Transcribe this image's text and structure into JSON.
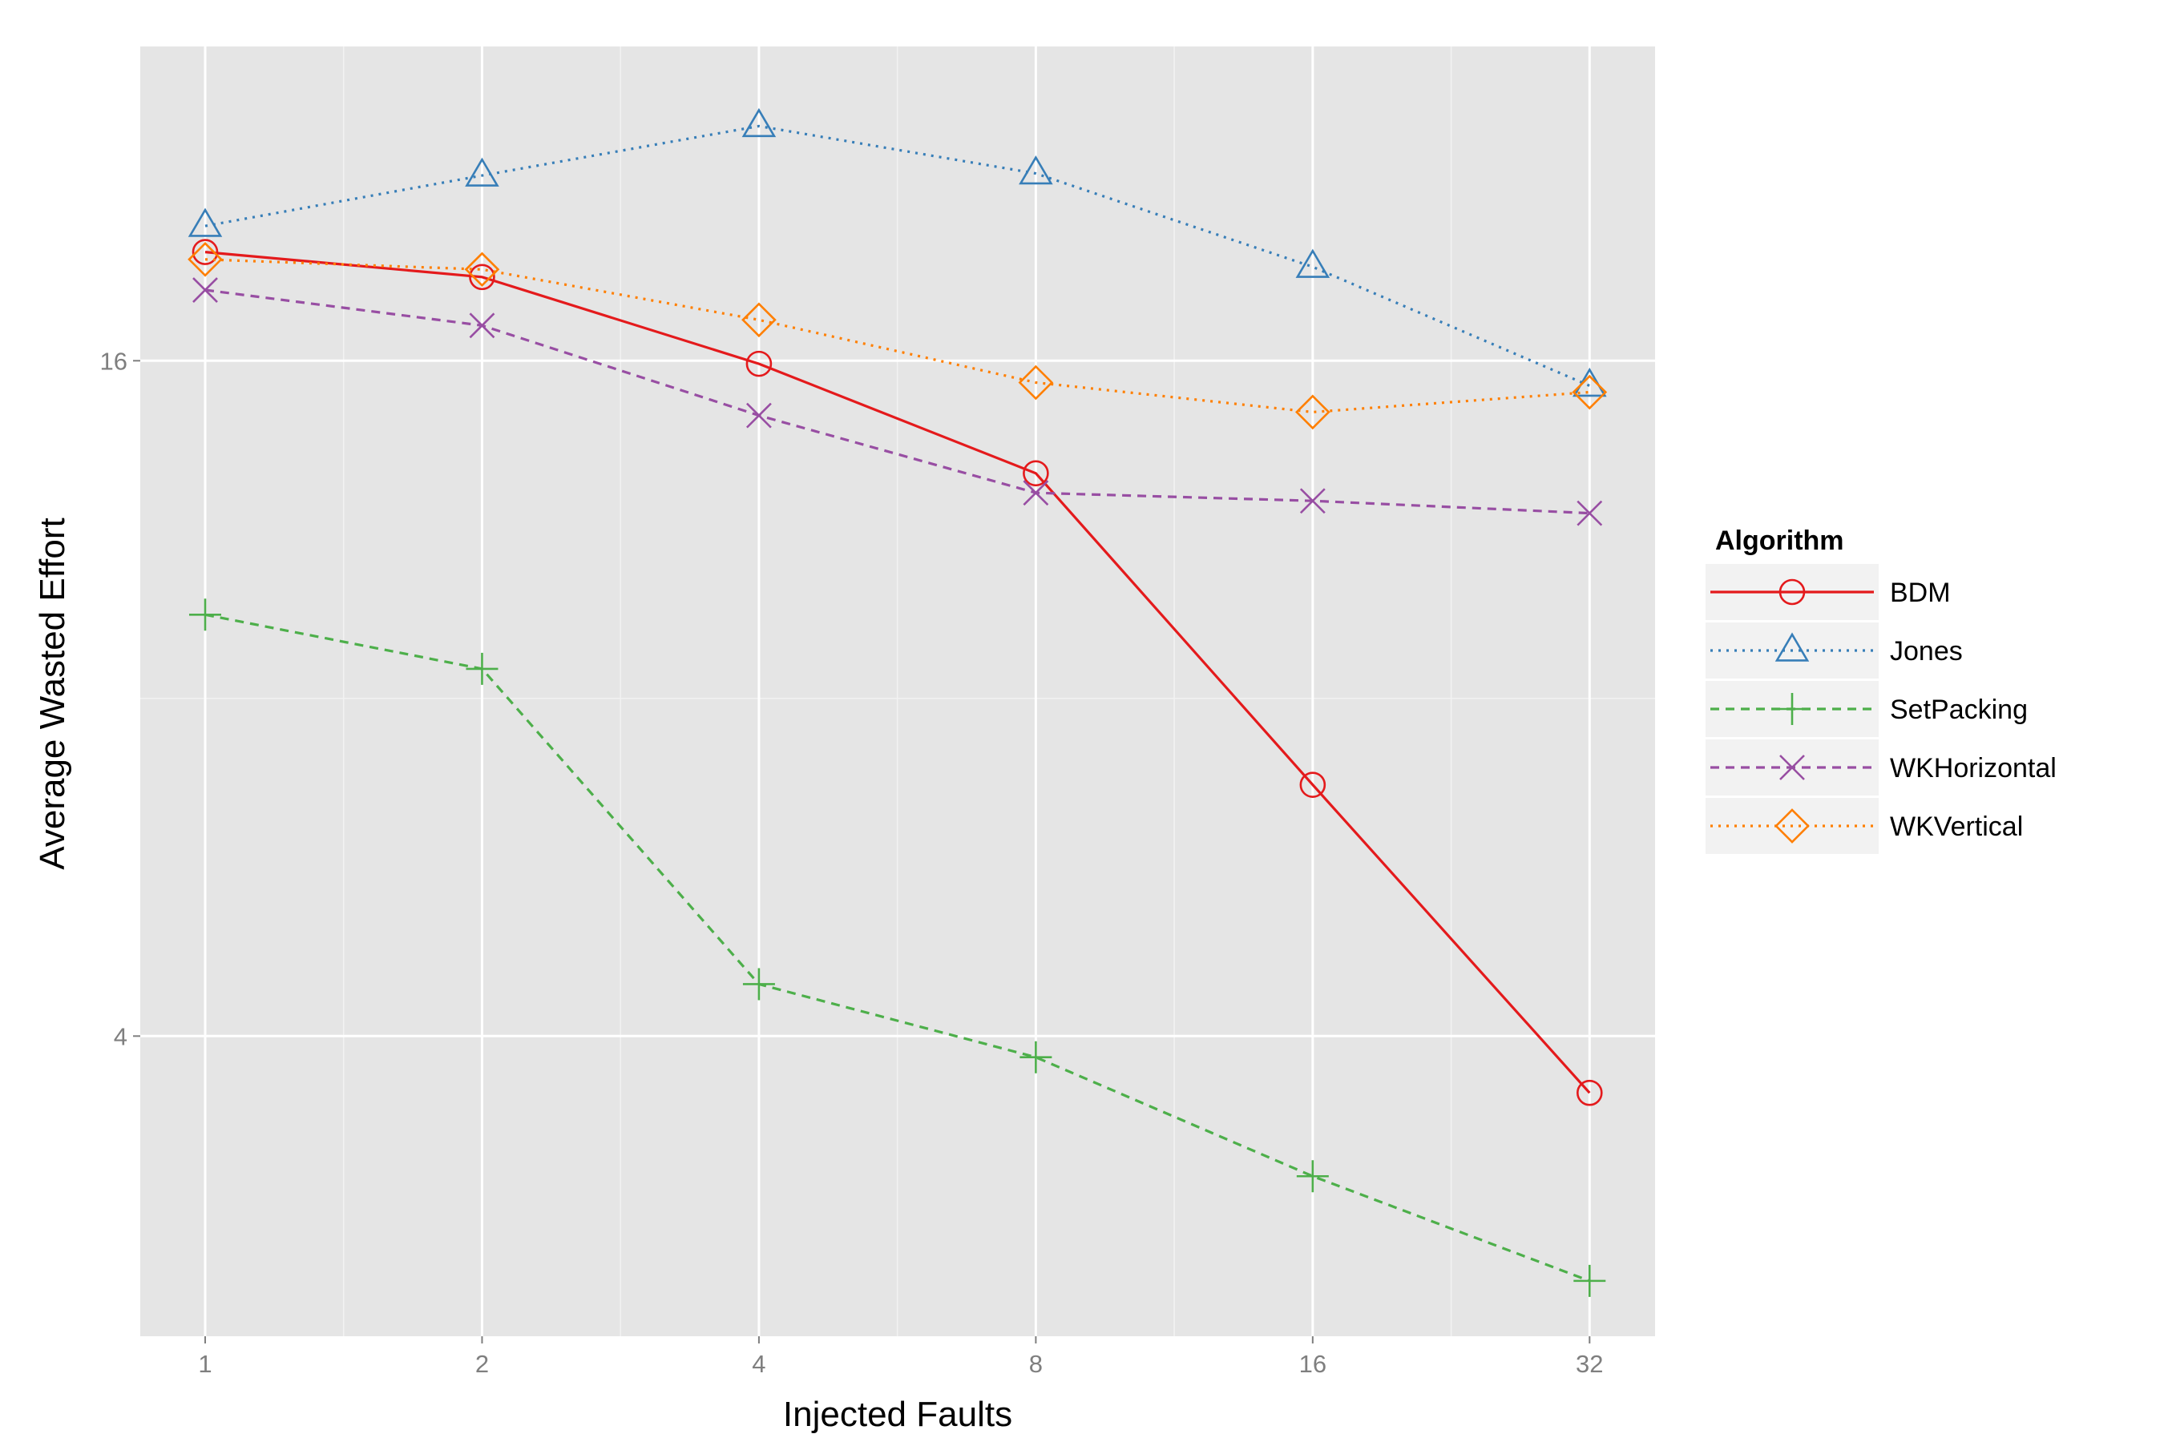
{
  "chart_data": {
    "type": "line",
    "title": "",
    "xlabel": "Injected Faults",
    "ylabel": "Average Wasted Effort",
    "x": [
      1,
      2,
      4,
      8,
      16,
      32
    ],
    "x_ticks": [
      "1",
      "2",
      "4",
      "8",
      "16",
      "32"
    ],
    "y_ticks": [
      {
        "value": 4,
        "label": "4"
      },
      {
        "value": 16,
        "label": "16"
      }
    ],
    "x_scale": "log2",
    "y_scale": "log2",
    "xlim": [
      0.85,
      37.7
    ],
    "ylim": [
      2.16,
      30.5
    ],
    "grid": true,
    "legend_title": "Algorithm",
    "legend_position": "right",
    "series": [
      {
        "name": "BDM",
        "color": "#e41a1c",
        "marker": "circle",
        "dash": "solid",
        "values": [
          20.0,
          19.0,
          15.9,
          12.7,
          6.7,
          3.56
        ]
      },
      {
        "name": "Jones",
        "color": "#377eb8",
        "marker": "triangle",
        "dash": "dotted",
        "values": [
          21.1,
          23.4,
          25.9,
          23.5,
          19.4,
          15.2
        ]
      },
      {
        "name": "SetPacking",
        "color": "#4daf4a",
        "marker": "plus",
        "dash": "dashed",
        "values": [
          9.5,
          8.5,
          4.45,
          3.83,
          3.0,
          2.42
        ]
      },
      {
        "name": "WKHorizontal",
        "color": "#984ea3",
        "marker": "cross",
        "dash": "dashed",
        "values": [
          18.5,
          17.2,
          14.3,
          12.2,
          12.0,
          11.7
        ]
      },
      {
        "name": "WKVertical",
        "color": "#ff7f00",
        "marker": "diamond",
        "dash": "dotted",
        "values": [
          19.7,
          19.3,
          17.4,
          15.3,
          14.4,
          15.0
        ]
      }
    ]
  }
}
